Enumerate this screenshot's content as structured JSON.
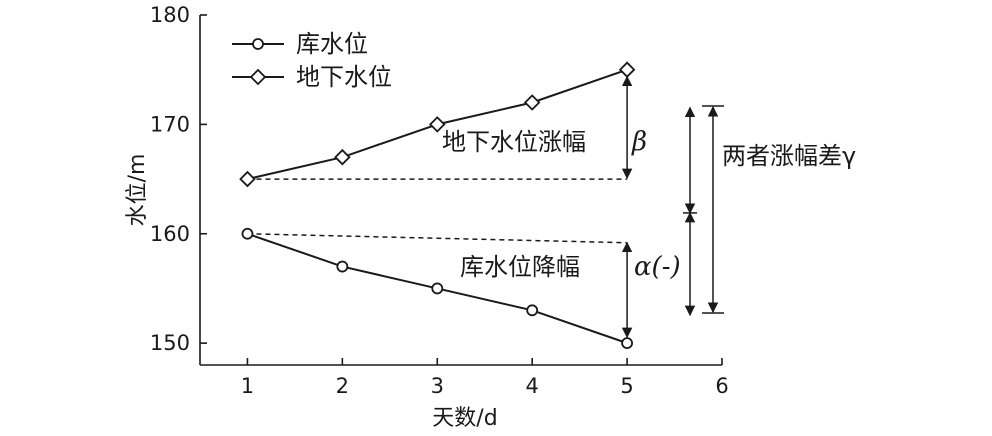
{
  "chart_data": {
    "type": "line",
    "x": [
      1,
      2,
      3,
      4,
      5
    ],
    "xlim": [
      0.5,
      6
    ],
    "ylim": [
      148,
      180
    ],
    "xticks": [
      "1",
      "2",
      "3",
      "4",
      "5",
      "6"
    ],
    "yticks": [
      "150",
      "160",
      "170",
      "180"
    ],
    "xlabel": "天数/d",
    "ylabel": "水位/m",
    "legend": "top-left",
    "grid": false,
    "series": [
      {
        "name": "库水位",
        "marker": "circle",
        "values": [
          160,
          157,
          155,
          153,
          150
        ]
      },
      {
        "name": "地下水位",
        "marker": "diamond",
        "values": [
          165,
          167,
          170,
          172,
          175
        ]
      }
    ],
    "annotations": {
      "groundwater_rise": {
        "text": "地下水位涨幅",
        "symbol": "β"
      },
      "reservoir_drop": {
        "text": "库水位降幅",
        "symbol": "α(-)"
      },
      "difference": {
        "text": "两者涨幅差γ"
      }
    }
  }
}
